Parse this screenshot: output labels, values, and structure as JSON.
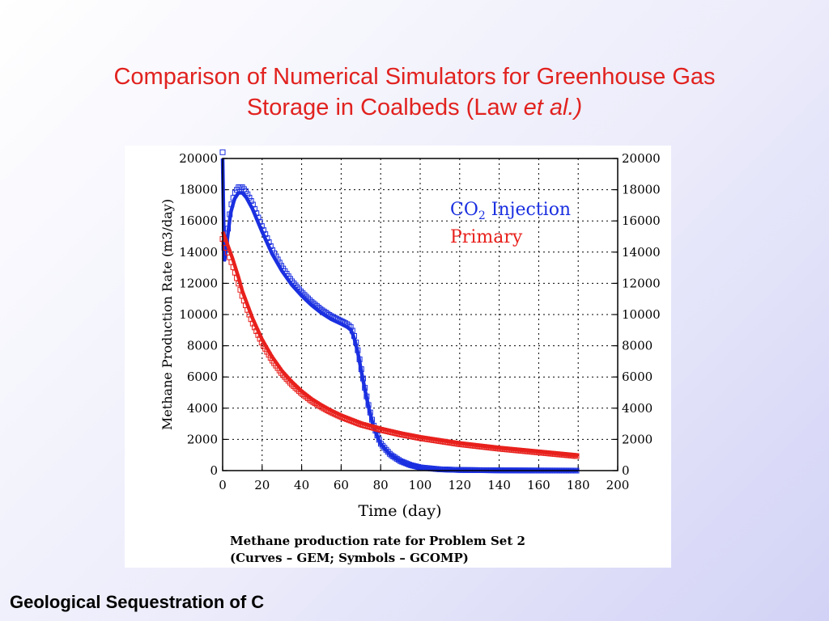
{
  "slide": {
    "title_line1": "Comparison of Numerical Simulators for Greenhouse Gas",
    "title_line2_prefix": "Storage in Coalbeds (Law ",
    "title_line2_italic": "et al.)",
    "footer": "Geological Sequestration of C",
    "title_color": "#e1221f"
  },
  "chart_data": {
    "type": "line",
    "xlabel": "Time (day)",
    "ylabel": "Methane Production Rate (m3/day)",
    "xlim": [
      0,
      200
    ],
    "ylim": [
      0,
      20000
    ],
    "x_ticks": [
      "0",
      "20",
      "40",
      "60",
      "80",
      "100",
      "120",
      "140",
      "160",
      "180",
      "200"
    ],
    "y_ticks": [
      "0",
      "2000",
      "4000",
      "6000",
      "8000",
      "10000",
      "12000",
      "14000",
      "16000",
      "18000",
      "20000"
    ],
    "grid": true,
    "legend_position": "top-right",
    "caption_line1": "Methane production rate for Problem Set 2",
    "caption_line2": "(Curves – GEM; Symbols – GCOMP)",
    "legend": {
      "co2_prefix": "CO",
      "co2_subscript": "2",
      "co2_suffix": " Injection",
      "primary": "Primary"
    },
    "series": [
      {
        "name": "CO2 Injection",
        "color": "#1a2fe0",
        "x": [
          0,
          0.5,
          1,
          2,
          4,
          6,
          8,
          10,
          12,
          15,
          20,
          25,
          30,
          35,
          40,
          45,
          50,
          55,
          60,
          63,
          65,
          66,
          67,
          68,
          69,
          70,
          72,
          74,
          76,
          78,
          80,
          85,
          90,
          95,
          100,
          110,
          120,
          140,
          160,
          180
        ],
        "y": [
          20000,
          16000,
          13500,
          14500,
          16500,
          17400,
          17800,
          17800,
          17500,
          16800,
          15300,
          13900,
          12800,
          11900,
          11200,
          10600,
          10100,
          9700,
          9400,
          9200,
          9000,
          8700,
          8300,
          7800,
          7200,
          6500,
          5200,
          4000,
          3000,
          2300,
          1700,
          1000,
          600,
          350,
          200,
          80,
          40,
          15,
          5,
          0
        ]
      },
      {
        "name": "Primary",
        "color": "#e8201c",
        "x": [
          0,
          1,
          3,
          5,
          8,
          10,
          15,
          20,
          25,
          30,
          35,
          40,
          45,
          50,
          55,
          60,
          70,
          80,
          90,
          100,
          110,
          120,
          140,
          160,
          180
        ],
        "y": [
          15300,
          15000,
          14300,
          13600,
          12400,
          11500,
          9800,
          8400,
          7300,
          6400,
          5700,
          5100,
          4600,
          4200,
          3850,
          3550,
          3050,
          2700,
          2400,
          2150,
          1950,
          1750,
          1450,
          1200,
          950
        ]
      }
    ]
  }
}
